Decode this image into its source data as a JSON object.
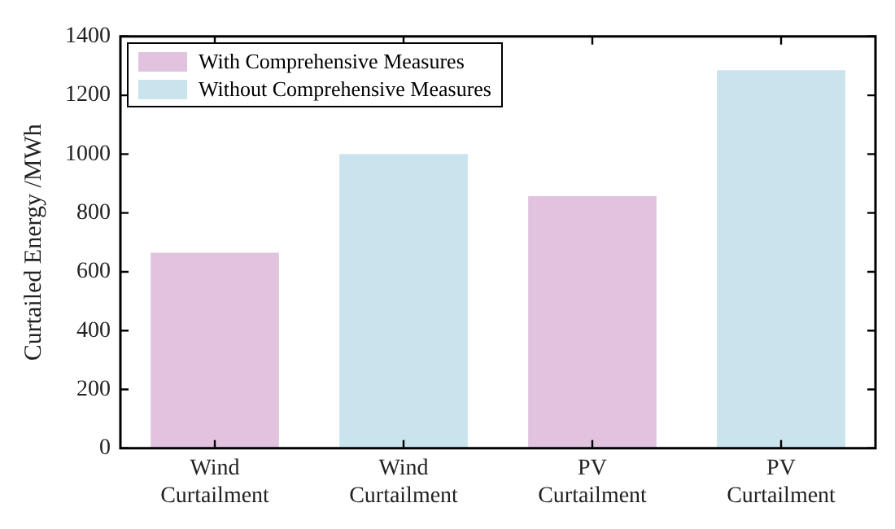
{
  "chart_data": {
    "type": "bar",
    "ylabel": "Curtailed Energy /MWh",
    "categories": [
      "Wind Curtailment",
      "Wind Curtailment",
      "PV Curtailment",
      "PV Curtailment"
    ],
    "series": [
      {
        "name": "With Comprehensive Measures",
        "color": "#e2c3df",
        "values": [
          665,
          null,
          857,
          null
        ]
      },
      {
        "name": "Without Comprehensive Measures",
        "color": "#c9e4ec",
        "values": [
          null,
          1000,
          null,
          1285
        ]
      }
    ],
    "ylim": [
      0,
      1400
    ],
    "yticks": [
      0,
      200,
      400,
      600,
      800,
      1000,
      1200,
      1400
    ],
    "grid": false,
    "legend": "top left"
  }
}
